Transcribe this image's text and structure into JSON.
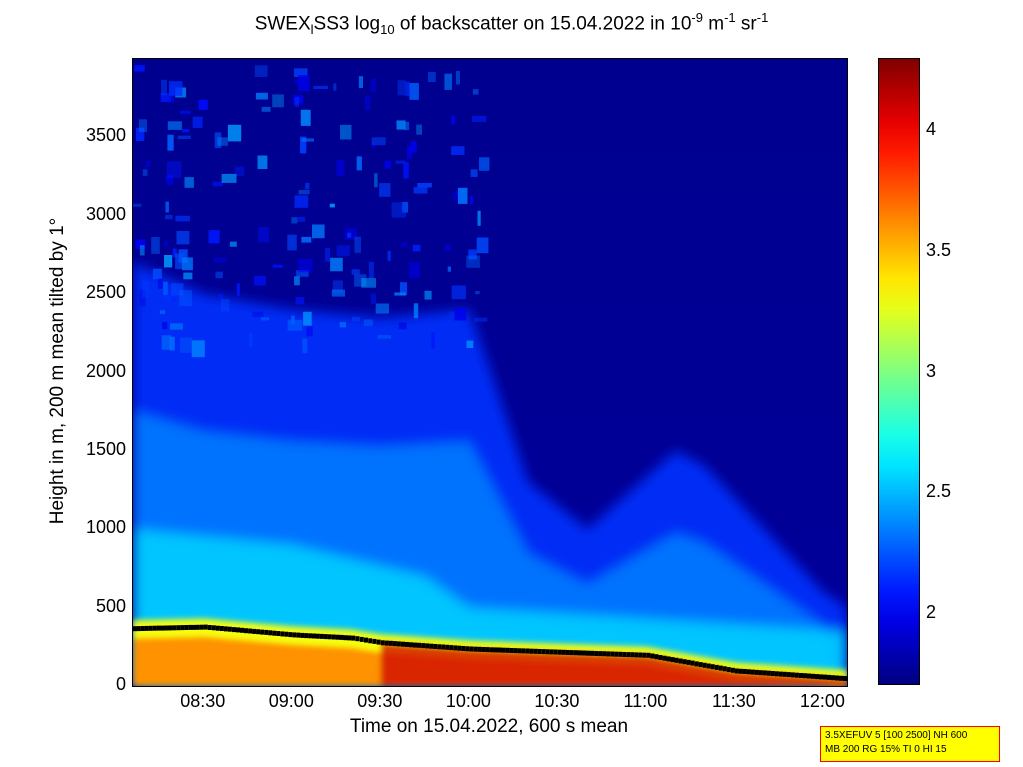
{
  "title": {
    "prefix": "SWEX",
    "sub1": "l",
    "mid": "SS3 log",
    "sub2": "10",
    "rest": " of backscatter on 15.04.2022 in 10",
    "sup1": "-9",
    "unit1": " m",
    "sup2": "-1",
    "unit2": " sr",
    "sup3": "-1"
  },
  "chart_data": {
    "type": "heatmap",
    "xlabel": "Time on 15.04.2022, 600 s mean",
    "ylabel": "Height in m, 200 m mean tilted by 1°",
    "x_range": [
      "08:06",
      "12:08"
    ],
    "ylim": [
      0,
      4000
    ],
    "x_ticks": [
      "08:30",
      "09:00",
      "09:30",
      "10:00",
      "10:30",
      "11:00",
      "11:30",
      "12:00"
    ],
    "y_ticks": [
      0,
      500,
      1000,
      1500,
      2000,
      2500,
      3000,
      3500
    ],
    "colorbar": {
      "range": [
        1.7,
        4.3
      ],
      "ticks": [
        2,
        2.5,
        3,
        3.5,
        4
      ],
      "colormap": "jet"
    },
    "grid": false,
    "aerosol_layer_top_m": [
      {
        "time": "08:06",
        "height": 420
      },
      {
        "time": "08:30",
        "height": 430
      },
      {
        "time": "09:00",
        "height": 380
      },
      {
        "time": "09:20",
        "height": 360
      },
      {
        "time": "09:30",
        "height": 330
      },
      {
        "time": "10:00",
        "height": 290
      },
      {
        "time": "10:30",
        "height": 270
      },
      {
        "time": "11:00",
        "height": 250
      },
      {
        "time": "11:30",
        "height": 150
      },
      {
        "time": "12:08",
        "height": 100
      }
    ],
    "cloud_plume_tops_m": [
      {
        "time": "08:06",
        "height": 2700
      },
      {
        "time": "08:30",
        "height": 2500
      },
      {
        "time": "09:00",
        "height": 2400
      },
      {
        "time": "09:30",
        "height": 2350
      },
      {
        "time": "10:00",
        "height": 2400
      },
      {
        "time": "10:20",
        "height": 1300
      },
      {
        "time": "10:40",
        "height": 1000
      },
      {
        "time": "11:10",
        "height": 1500
      },
      {
        "time": "11:20",
        "height": 1400
      },
      {
        "time": "12:00",
        "height": 600
      }
    ]
  },
  "infobox": {
    "line1": "3.5XEFUV 5 [100 2500] NH 600",
    "line2": "MB 200 RG 15% TI 0 HI 15"
  }
}
